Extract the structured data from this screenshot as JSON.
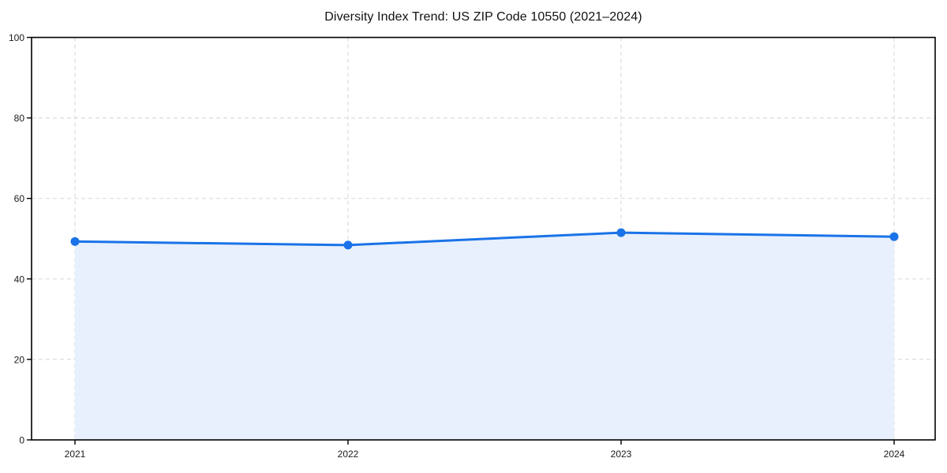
{
  "chart_data": {
    "type": "area",
    "title": "Diversity Index Trend: US ZIP Code 10550 (2021–2024)",
    "x": [
      2021,
      2022,
      2023,
      2024
    ],
    "xticklabels": [
      "2021",
      "2022",
      "2023",
      "2024"
    ],
    "series": [
      {
        "name": "Diversity Index",
        "values": [
          49.3,
          48.4,
          51.5,
          50.5
        ]
      }
    ],
    "xlabel": "",
    "ylabel": "",
    "ylim": [
      0,
      100
    ],
    "yticks": [
      0,
      20,
      40,
      60,
      80,
      100
    ],
    "yticklabels": [
      "0",
      "20",
      "40",
      "60",
      "80",
      "100"
    ],
    "legend": "none",
    "grid": "dashed-both-axes",
    "marker": "circle",
    "colors": {
      "line": "#1a73e8",
      "marker": "#1a73e8",
      "fill": "#e8f0fd",
      "grid": "#dcdcdc",
      "spine": "#000000",
      "tick_label": "#1a1a1a",
      "title": "#111111",
      "background": "#ffffff"
    }
  }
}
